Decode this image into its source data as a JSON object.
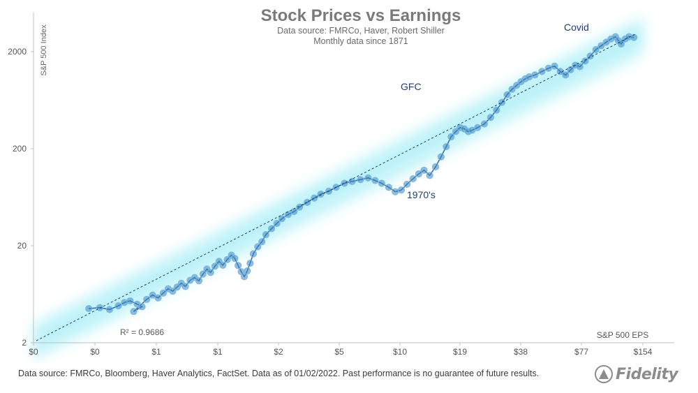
{
  "chart_data": {
    "type": "scatter",
    "title": "Stock Prices vs Earnings",
    "subtitle_lines": [
      "Data source: FMRCo, Haver, Robert Shiller",
      "Monthly data since 1871"
    ],
    "xlabel": "S&P 500 EPS",
    "ylabel": "S&P 500 Index",
    "x_scale": "log",
    "y_scale": "log",
    "x_tick_labels": [
      "$0",
      "$0",
      "$1",
      "$1",
      "$2",
      "$5",
      "$10",
      "$19",
      "$38",
      "$77",
      "$154"
    ],
    "y_ticks": [
      2,
      20,
      200,
      2000
    ],
    "y_tick_labels": [
      "2",
      "20",
      "200",
      "2000"
    ],
    "ylim": [
      2,
      2900
    ],
    "r_squared_label": "R² = 0.9686",
    "annotations": [
      "Covid",
      "GFC",
      "1970's"
    ],
    "grid": false,
    "trendline": true,
    "series": [
      {
        "points": [
          [
            0.3,
            4.5
          ],
          [
            0.34,
            4.6
          ],
          [
            0.38,
            4.4
          ],
          [
            0.42,
            4.8
          ],
          [
            0.45,
            5.2
          ],
          [
            0.48,
            5.4
          ],
          [
            0.52,
            5.0
          ],
          [
            0.55,
            4.7
          ],
          [
            0.5,
            4.2
          ],
          [
            0.58,
            5.6
          ],
          [
            0.62,
            6.2
          ],
          [
            0.66,
            5.8
          ],
          [
            0.7,
            6.5
          ],
          [
            0.74,
            7.2
          ],
          [
            0.78,
            6.8
          ],
          [
            0.82,
            7.5
          ],
          [
            0.86,
            8.2
          ],
          [
            0.9,
            7.6
          ],
          [
            0.95,
            8.8
          ],
          [
            1.0,
            9.4
          ],
          [
            1.05,
            8.7
          ],
          [
            1.1,
            10.2
          ],
          [
            1.15,
            11.5
          ],
          [
            1.2,
            10.6
          ],
          [
            1.26,
            12.3
          ],
          [
            1.32,
            13.8
          ],
          [
            1.38,
            12.6
          ],
          [
            1.45,
            14.4
          ],
          [
            1.52,
            16.0
          ],
          [
            1.58,
            14.8
          ],
          [
            1.64,
            12.5
          ],
          [
            1.7,
            10.8
          ],
          [
            1.76,
            9.6
          ],
          [
            1.82,
            11.0
          ],
          [
            1.88,
            13.2
          ],
          [
            1.95,
            16.5
          ],
          [
            2.05,
            19.5
          ],
          [
            2.15,
            22.0
          ],
          [
            2.25,
            26.0
          ],
          [
            2.4,
            30.0
          ],
          [
            2.55,
            34.0
          ],
          [
            2.7,
            38.0
          ],
          [
            2.9,
            42.0
          ],
          [
            3.1,
            45.0
          ],
          [
            3.3,
            50.0
          ],
          [
            3.6,
            56.0
          ],
          [
            3.9,
            62.0
          ],
          [
            4.2,
            68.0
          ],
          [
            4.6,
            73.0
          ],
          [
            5.0,
            80.0
          ],
          [
            5.5,
            88.0
          ],
          [
            6.0,
            92.0
          ],
          [
            6.6,
            96.0
          ],
          [
            7.2,
            100.0
          ],
          [
            7.8,
            94.0
          ],
          [
            8.4,
            88.0
          ],
          [
            9.1,
            80.0
          ],
          [
            9.8,
            72.0
          ],
          [
            10.5,
            75.0
          ],
          [
            11.2,
            86.0
          ],
          [
            12.0,
            98.0
          ],
          [
            12.8,
            110.0
          ],
          [
            13.6,
            120.0
          ],
          [
            14.5,
            106.0
          ],
          [
            15.5,
            130.0
          ],
          [
            16.5,
            165.0
          ],
          [
            17.5,
            210.0
          ],
          [
            18.5,
            265.0
          ],
          [
            19.5,
            300.0
          ],
          [
            20.5,
            330.0
          ],
          [
            21.5,
            320.0
          ],
          [
            22.5,
            300.0
          ],
          [
            23.5,
            310.0
          ],
          [
            25.0,
            330.0
          ],
          [
            27.0,
            360.0
          ],
          [
            29.0,
            420.0
          ],
          [
            31.0,
            500.0
          ],
          [
            33.0,
            600.0
          ],
          [
            35.0,
            720.0
          ],
          [
            37.0,
            820.0
          ],
          [
            39.0,
            900.0
          ],
          [
            41.0,
            980.0
          ],
          [
            43.0,
            1050.0
          ],
          [
            45.0,
            1100.0
          ],
          [
            48.0,
            1150.0
          ],
          [
            52.0,
            1250.0
          ],
          [
            56.0,
            1350.0
          ],
          [
            60.0,
            1420.0
          ],
          [
            64.0,
            1250.0
          ],
          [
            68.0,
            1150.0
          ],
          [
            72.0,
            1300.0
          ],
          [
            76.0,
            1450.0
          ],
          [
            80.0,
            1400.0
          ],
          [
            85.0,
            1600.0
          ],
          [
            90.0,
            1800.0
          ],
          [
            96.0,
            2100.0
          ],
          [
            102.0,
            2300.0
          ],
          [
            108.0,
            2500.0
          ],
          [
            114.0,
            2700.0
          ],
          [
            120.0,
            2850.0
          ],
          [
            124.0,
            2600.0
          ],
          [
            128.0,
            2400.0
          ],
          [
            134.0,
            2700.0
          ],
          [
            140.0,
            2850.0
          ],
          [
            148.0,
            2800.0
          ]
        ]
      }
    ]
  },
  "footer_note": "Data source: FMRCo, Bloomberg, Haver Analytics, FactSet. Data as of 01/02/2022. Past performance is no guarantee of future results.",
  "logo_text": "Fidelity"
}
